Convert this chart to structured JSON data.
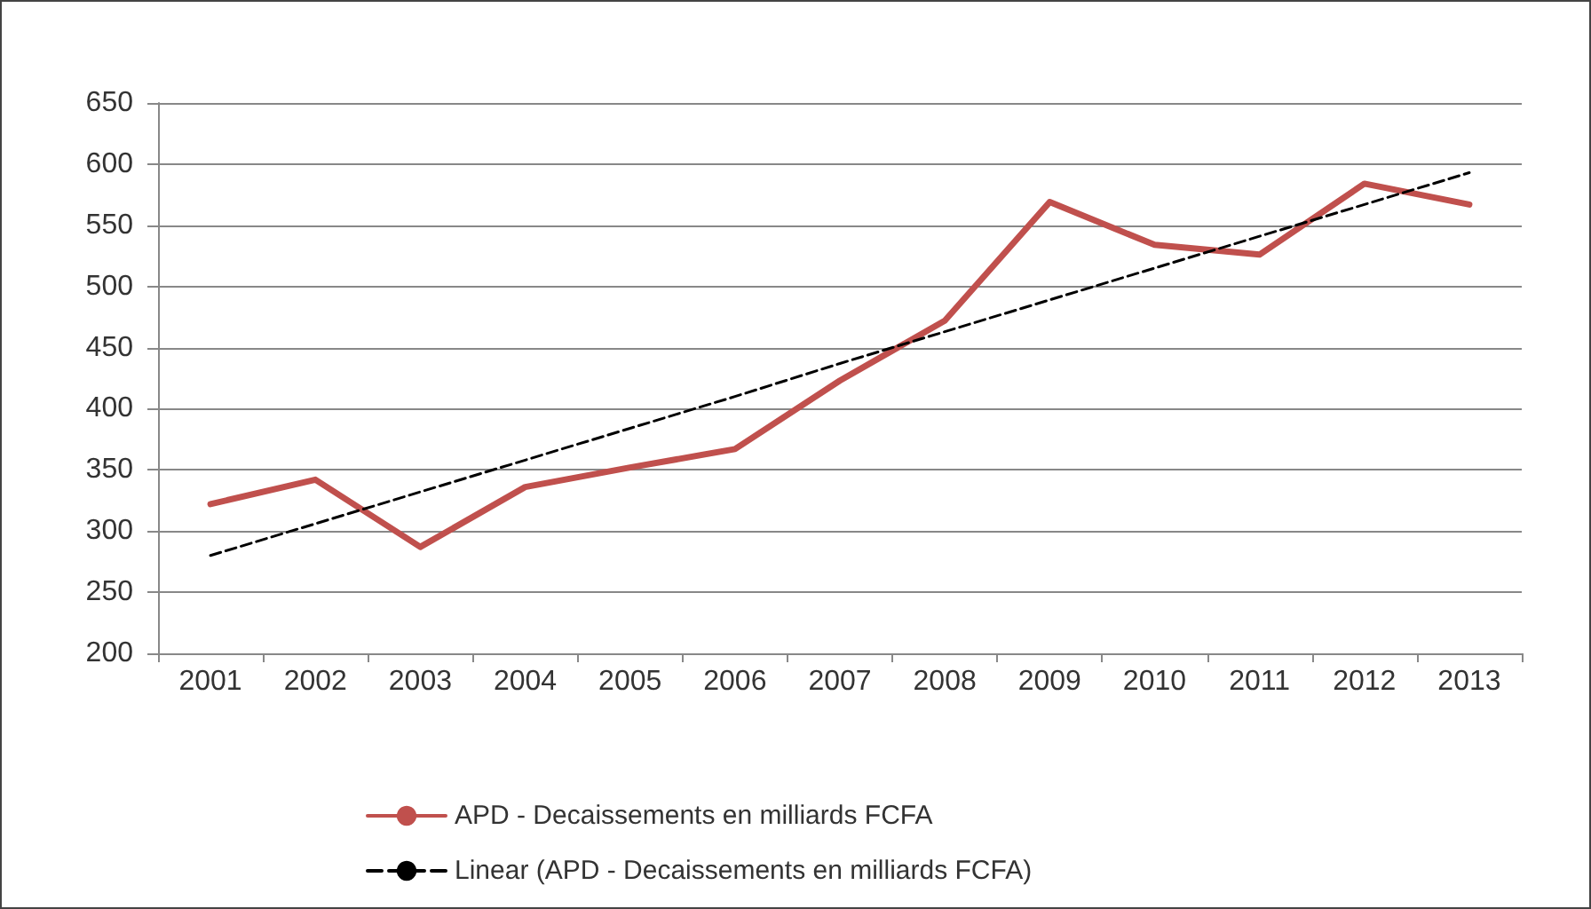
{
  "chart_data": {
    "type": "line",
    "categories": [
      "2001",
      "2002",
      "2003",
      "2004",
      "2005",
      "2006",
      "2007",
      "2008",
      "2009",
      "2010",
      "2011",
      "2012",
      "2013"
    ],
    "series": [
      {
        "name": "APD - Decaissements en milliards FCFA",
        "color": "#c0504d",
        "values": [
          322,
          342,
          287,
          336,
          352,
          367,
          423,
          472,
          569,
          534,
          526,
          584,
          567
        ]
      },
      {
        "name": "Linear (APD - Decaissements en milliards FCFA)",
        "color": "#000000",
        "values": [
          280,
          306,
          332,
          358,
          384,
          410,
          437,
          463,
          489,
          515,
          541,
          567,
          593
        ],
        "line_style": "dashed"
      }
    ],
    "ylim": [
      200,
      650
    ],
    "yticks": [
      200,
      250,
      300,
      350,
      400,
      450,
      500,
      550,
      600,
      650
    ],
    "grid": "y",
    "legend": "bottom",
    "marker": "none"
  }
}
